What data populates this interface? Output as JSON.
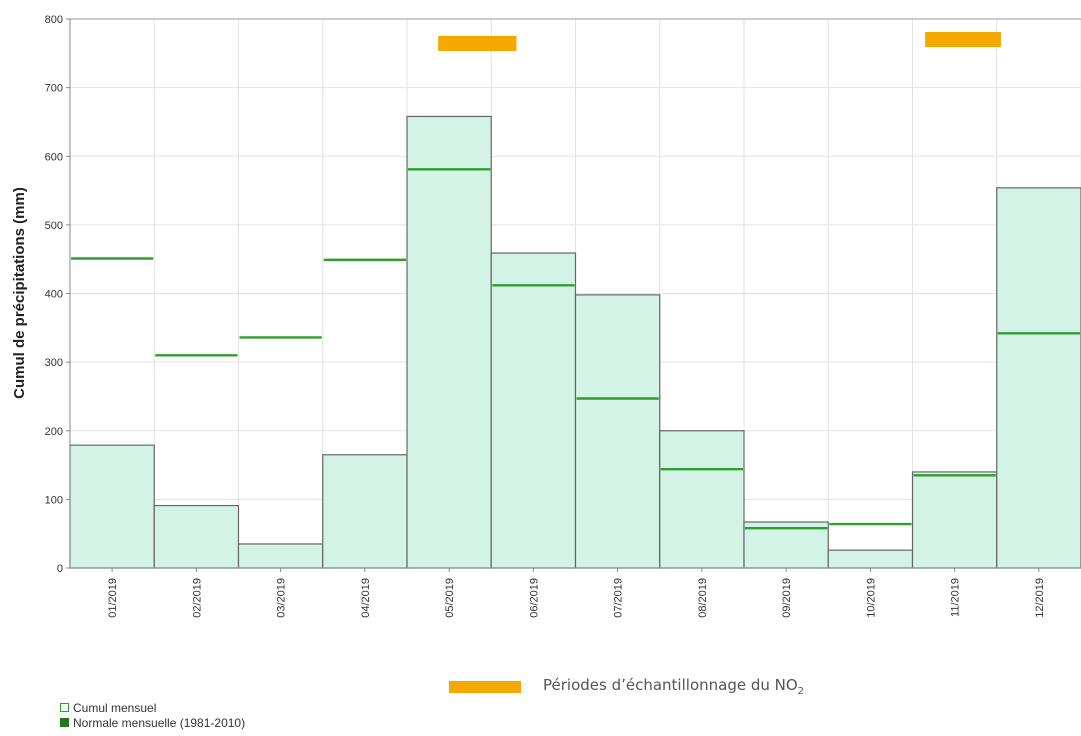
{
  "chart_data": {
    "type": "bar",
    "ylabel": "Cumul de précipitations (mm)",
    "xlabel": "",
    "ylim": [
      0,
      800
    ],
    "yticks": [
      0,
      100,
      200,
      300,
      400,
      500,
      600,
      700,
      800
    ],
    "grid": true,
    "categories": [
      "01/2019",
      "02/2019",
      "03/2019",
      "04/2019",
      "05/2019",
      "06/2019",
      "07/2019",
      "08/2019",
      "09/2019",
      "10/2019",
      "11/2019",
      "12/2019"
    ],
    "series": [
      {
        "name": "Cumul mensuel",
        "kind": "bar",
        "color": "#d3f3e6",
        "edge_color": "#666666",
        "values": [
          179,
          91,
          35,
          165,
          658,
          459,
          398,
          200,
          67,
          26,
          140,
          554
        ]
      },
      {
        "name": "Normale mensuelle (1981-2010)",
        "kind": "level",
        "color": "#2e9e2e",
        "values": [
          451,
          310,
          336,
          449,
          581,
          412,
          247,
          144,
          58,
          64,
          135,
          342
        ]
      }
    ],
    "sampling_periods": {
      "label_prefix": "Périodes d’échantillonnage du NO",
      "label_subscript": "2",
      "color": "#f5a800",
      "periods": [
        {
          "start": "05/2019",
          "end": "06/2019"
        },
        {
          "start": "11/2019",
          "end": "11/2019"
        }
      ]
    },
    "legend": {
      "placement": "bottom-left",
      "items": [
        {
          "label": "Cumul mensuel",
          "style": "outline",
          "color": "#2e9e2e"
        },
        {
          "label": "Normale mensuelle (1981-2010)",
          "style": "filled",
          "color": "#1f7a1f"
        }
      ]
    }
  }
}
